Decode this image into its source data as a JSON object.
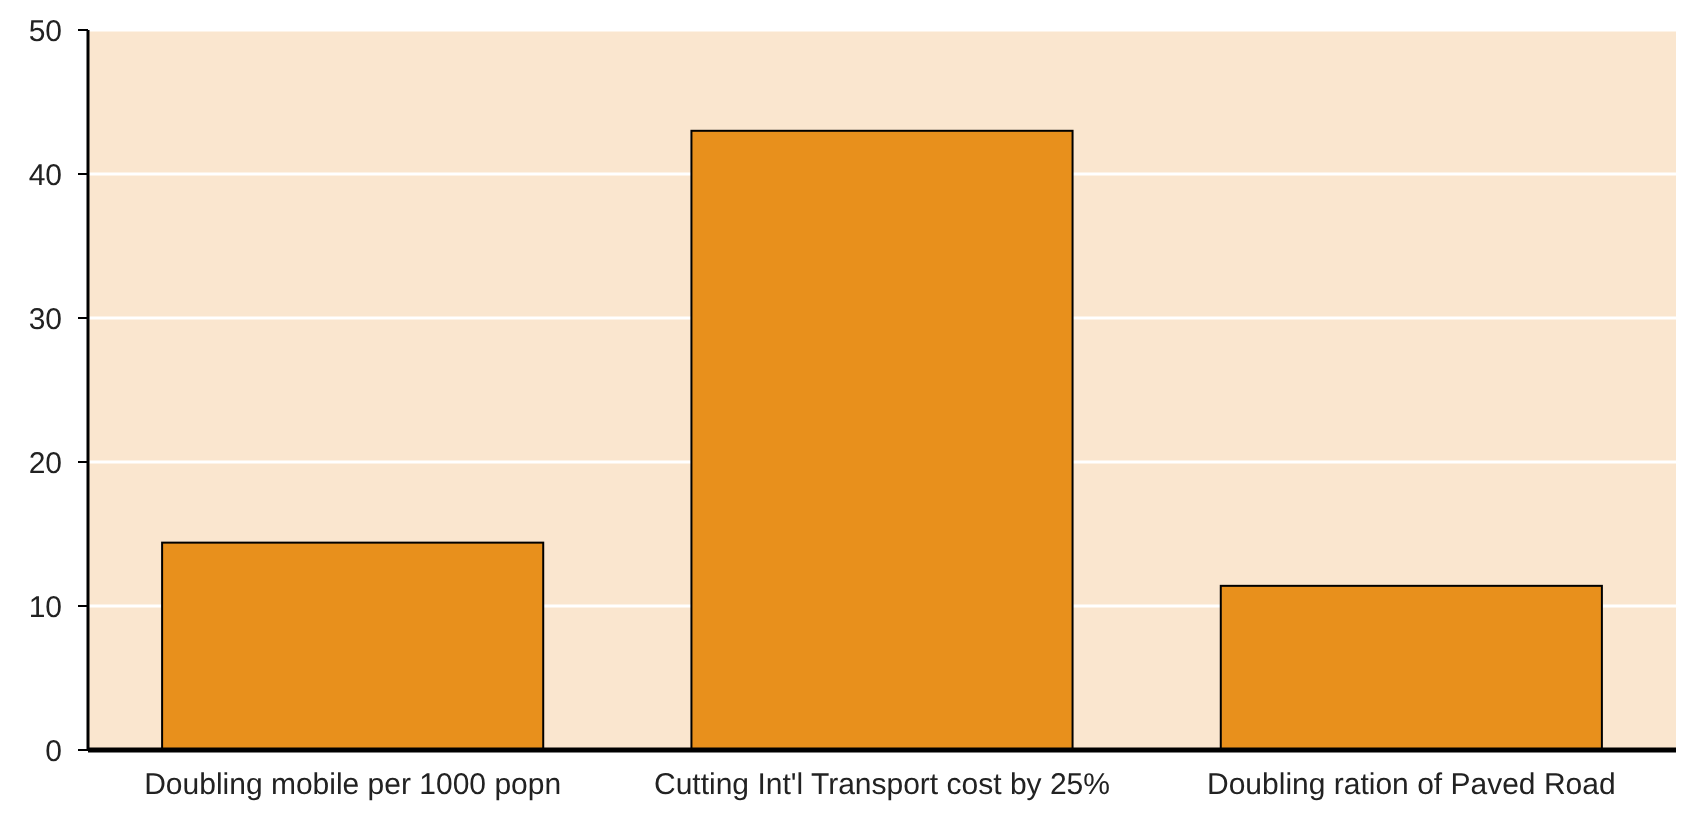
{
  "chart_data": {
    "type": "bar",
    "categories": [
      "Doubling mobile per 1000 popn",
      "Cutting Int'l Transport cost by 25%",
      "Doubling ration of Paved Road"
    ],
    "values": [
      14.4,
      43.0,
      11.4
    ],
    "color": "#e8901c",
    "ylim": [
      0,
      50
    ],
    "yticks": [
      0,
      10,
      20,
      30,
      40,
      50
    ],
    "grid": "y"
  }
}
